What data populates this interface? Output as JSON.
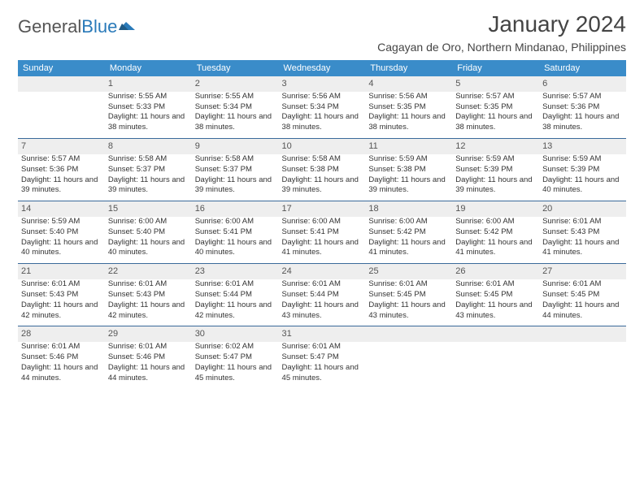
{
  "brand": {
    "word1": "General",
    "word2": "Blue"
  },
  "title": "January 2024",
  "subtitle": "Cagayan de Oro, Northern Mindanao, Philippines",
  "colors": {
    "header_bg": "#3a8cc9",
    "header_fg": "#ffffff",
    "daynum_bg": "#eeeeee",
    "row_divider": "#3a6a9a",
    "text": "#333333",
    "logo_blue": "#2a7ab9"
  },
  "weekdays": [
    "Sunday",
    "Monday",
    "Tuesday",
    "Wednesday",
    "Thursday",
    "Friday",
    "Saturday"
  ],
  "layout": {
    "first_weekday_index": 1,
    "days_in_month": 31
  },
  "days": {
    "1": {
      "sunrise": "5:55 AM",
      "sunset": "5:33 PM",
      "daylight": "11 hours and 38 minutes."
    },
    "2": {
      "sunrise": "5:55 AM",
      "sunset": "5:34 PM",
      "daylight": "11 hours and 38 minutes."
    },
    "3": {
      "sunrise": "5:56 AM",
      "sunset": "5:34 PM",
      "daylight": "11 hours and 38 minutes."
    },
    "4": {
      "sunrise": "5:56 AM",
      "sunset": "5:35 PM",
      "daylight": "11 hours and 38 minutes."
    },
    "5": {
      "sunrise": "5:57 AM",
      "sunset": "5:35 PM",
      "daylight": "11 hours and 38 minutes."
    },
    "6": {
      "sunrise": "5:57 AM",
      "sunset": "5:36 PM",
      "daylight": "11 hours and 38 minutes."
    },
    "7": {
      "sunrise": "5:57 AM",
      "sunset": "5:36 PM",
      "daylight": "11 hours and 39 minutes."
    },
    "8": {
      "sunrise": "5:58 AM",
      "sunset": "5:37 PM",
      "daylight": "11 hours and 39 minutes."
    },
    "9": {
      "sunrise": "5:58 AM",
      "sunset": "5:37 PM",
      "daylight": "11 hours and 39 minutes."
    },
    "10": {
      "sunrise": "5:58 AM",
      "sunset": "5:38 PM",
      "daylight": "11 hours and 39 minutes."
    },
    "11": {
      "sunrise": "5:59 AM",
      "sunset": "5:38 PM",
      "daylight": "11 hours and 39 minutes."
    },
    "12": {
      "sunrise": "5:59 AM",
      "sunset": "5:39 PM",
      "daylight": "11 hours and 39 minutes."
    },
    "13": {
      "sunrise": "5:59 AM",
      "sunset": "5:39 PM",
      "daylight": "11 hours and 40 minutes."
    },
    "14": {
      "sunrise": "5:59 AM",
      "sunset": "5:40 PM",
      "daylight": "11 hours and 40 minutes."
    },
    "15": {
      "sunrise": "6:00 AM",
      "sunset": "5:40 PM",
      "daylight": "11 hours and 40 minutes."
    },
    "16": {
      "sunrise": "6:00 AM",
      "sunset": "5:41 PM",
      "daylight": "11 hours and 40 minutes."
    },
    "17": {
      "sunrise": "6:00 AM",
      "sunset": "5:41 PM",
      "daylight": "11 hours and 41 minutes."
    },
    "18": {
      "sunrise": "6:00 AM",
      "sunset": "5:42 PM",
      "daylight": "11 hours and 41 minutes."
    },
    "19": {
      "sunrise": "6:00 AM",
      "sunset": "5:42 PM",
      "daylight": "11 hours and 41 minutes."
    },
    "20": {
      "sunrise": "6:01 AM",
      "sunset": "5:43 PM",
      "daylight": "11 hours and 41 minutes."
    },
    "21": {
      "sunrise": "6:01 AM",
      "sunset": "5:43 PM",
      "daylight": "11 hours and 42 minutes."
    },
    "22": {
      "sunrise": "6:01 AM",
      "sunset": "5:43 PM",
      "daylight": "11 hours and 42 minutes."
    },
    "23": {
      "sunrise": "6:01 AM",
      "sunset": "5:44 PM",
      "daylight": "11 hours and 42 minutes."
    },
    "24": {
      "sunrise": "6:01 AM",
      "sunset": "5:44 PM",
      "daylight": "11 hours and 43 minutes."
    },
    "25": {
      "sunrise": "6:01 AM",
      "sunset": "5:45 PM",
      "daylight": "11 hours and 43 minutes."
    },
    "26": {
      "sunrise": "6:01 AM",
      "sunset": "5:45 PM",
      "daylight": "11 hours and 43 minutes."
    },
    "27": {
      "sunrise": "6:01 AM",
      "sunset": "5:45 PM",
      "daylight": "11 hours and 44 minutes."
    },
    "28": {
      "sunrise": "6:01 AM",
      "sunset": "5:46 PM",
      "daylight": "11 hours and 44 minutes."
    },
    "29": {
      "sunrise": "6:01 AM",
      "sunset": "5:46 PM",
      "daylight": "11 hours and 44 minutes."
    },
    "30": {
      "sunrise": "6:02 AM",
      "sunset": "5:47 PM",
      "daylight": "11 hours and 45 minutes."
    },
    "31": {
      "sunrise": "6:01 AM",
      "sunset": "5:47 PM",
      "daylight": "11 hours and 45 minutes."
    }
  },
  "labels": {
    "sunrise": "Sunrise:",
    "sunset": "Sunset:",
    "daylight": "Daylight:"
  }
}
